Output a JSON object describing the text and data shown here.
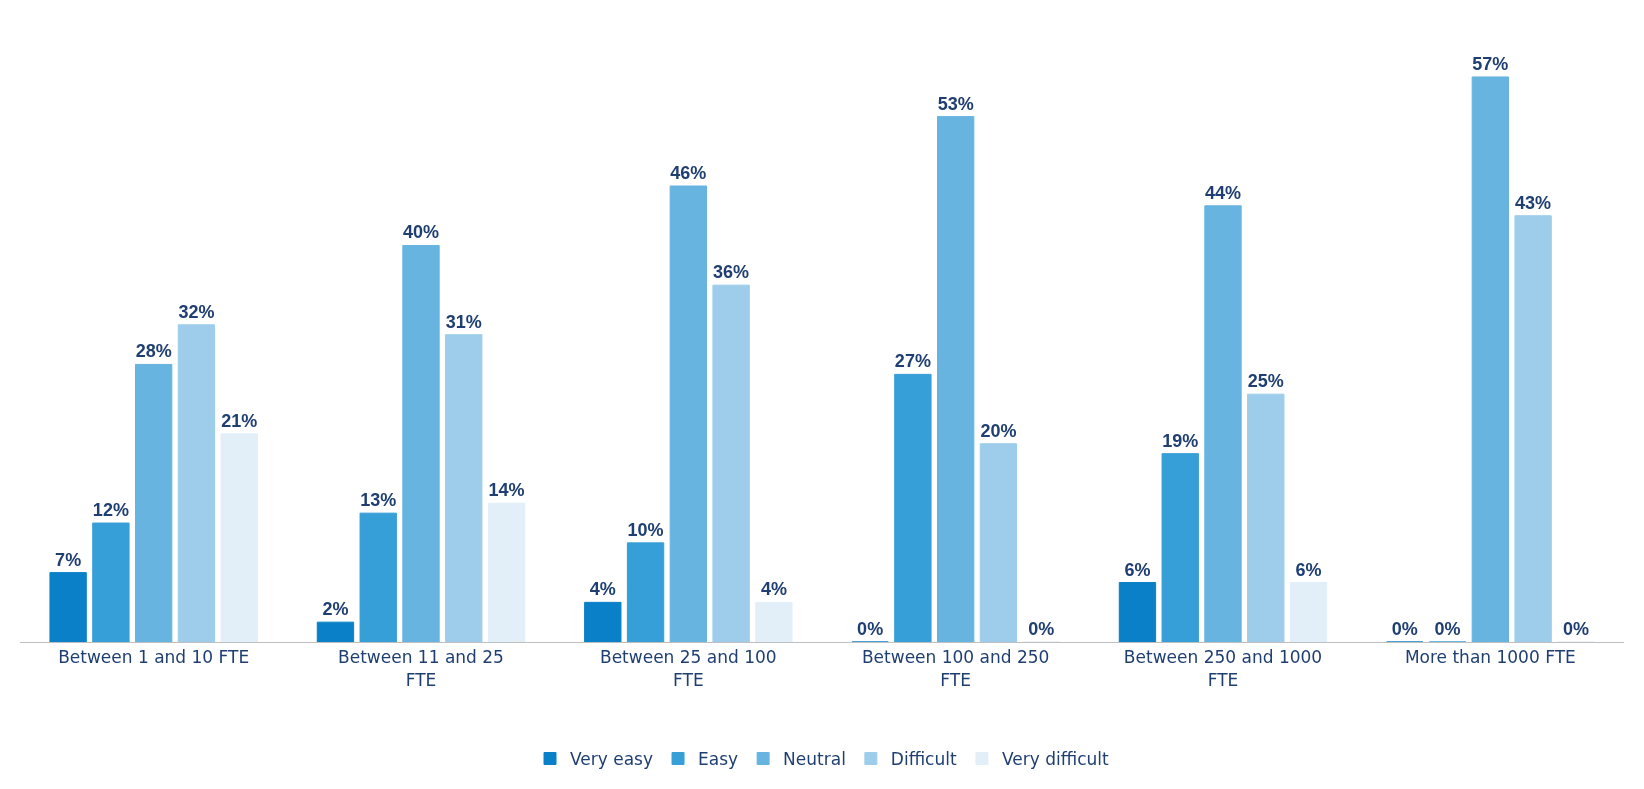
{
  "chart_data": {
    "type": "bar",
    "categories": [
      "Between 1 and 10 FTE",
      "Between 11 and 25 FTE",
      "Between 25 and 100 FTE",
      "Between 100 and 250 FTE",
      "Between 250 and 1000 FTE",
      "More than 1000 FTE"
    ],
    "series": [
      {
        "name": "Very easy",
        "color": "#0a80c8",
        "values": [
          7,
          2,
          4,
          0,
          6,
          0
        ],
        "value_labels": [
          "7%",
          "2%",
          "4%",
          "0%",
          "6%",
          "0%"
        ]
      },
      {
        "name": "Easy",
        "color": "#379fd7",
        "values": [
          12,
          13,
          10,
          27,
          19,
          0
        ],
        "value_labels": [
          "12%",
          "13%",
          "10%",
          "27%",
          "19%",
          "0%"
        ]
      },
      {
        "name": "Neutral",
        "color": "#67b4e0",
        "values": [
          28,
          40,
          46,
          53,
          44,
          57
        ],
        "value_labels": [
          "28%",
          "40%",
          "46%",
          "53%",
          "44%",
          "57%"
        ]
      },
      {
        "name": "Difficult",
        "color": "#9dcdea",
        "values": [
          32,
          31,
          36,
          20,
          25,
          43
        ],
        "value_labels": [
          "32%",
          "31%",
          "36%",
          "20%",
          "25%",
          "43%"
        ]
      },
      {
        "name": "Very difficult",
        "color": "#e2eff8",
        "values": [
          21,
          14,
          4,
          0,
          6,
          0
        ],
        "value_labels": [
          "21%",
          "14%",
          "4%",
          "0%",
          "6%",
          "0%"
        ]
      }
    ],
    "legend": "bottom"
  }
}
